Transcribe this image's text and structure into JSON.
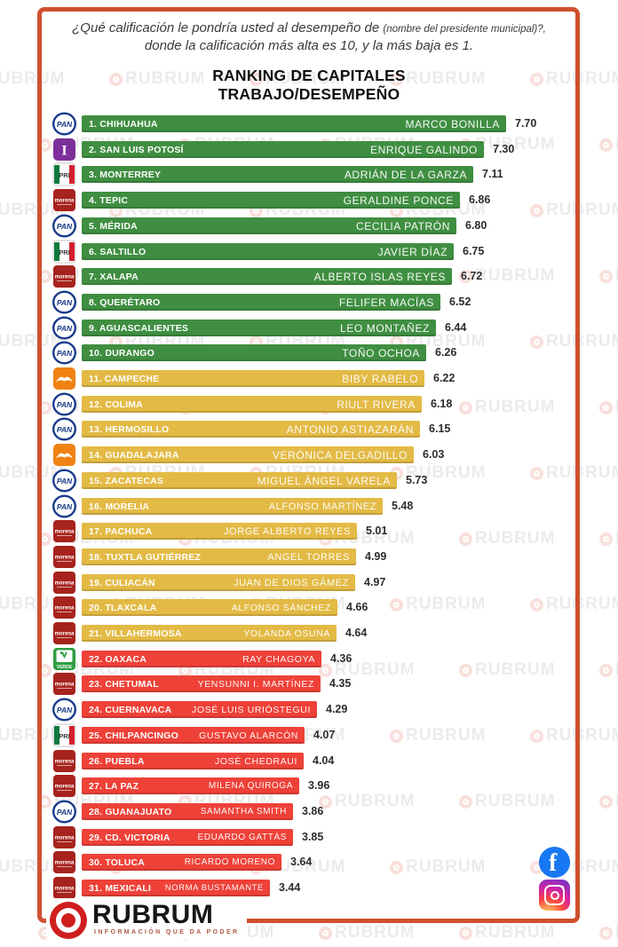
{
  "header": {
    "question_part1": "¿Qué calificación le pondría usted al desempeño de",
    "question_small": "(nombre del presidente municipal)?,",
    "question_part2": "donde la calificación más alta es 10, y la más baja es 1.",
    "title_line1": "RANKING DE CAPITALES",
    "title_line2": "TRABAJO/DESEMPEÑO"
  },
  "watermark": {
    "text": "RUBRUM",
    "icon": "rubrum-ring-icon"
  },
  "footer": {
    "brand": "RUBRUM",
    "tagline": "INFORMACIÓN QUE DA PODER",
    "brand_icon": "rubrum-target-icon",
    "social_icons": [
      "facebook-icon",
      "instagram-icon"
    ]
  },
  "colors": {
    "tier_green": "#3f8e41",
    "tier_yellow": "#e3ba45",
    "tier_red": "#ee4138",
    "frame": "#d0502f",
    "facebook_blue": "#1877f2",
    "brand_red": "#cf1e1e"
  },
  "party_logos": {
    "PAN": "pan-logo-icon",
    "I": "independent-i-logo-icon",
    "PRI": "pri-logo-icon",
    "MORENA": "morena-logo-icon",
    "MC": "movimiento-ciudadano-logo-icon",
    "VERDE": "partido-verde-logo-icon"
  },
  "chart_data": {
    "type": "bar",
    "title": "RANKING DE CAPITALES TRABAJO/DESEMPEÑO",
    "subtitle": "¿Qué calificación le pondría usted al desempeño de (nombre del presidente municipal)?, donde la calificación más alta es 10, y la más baja es 1.",
    "value_range": [
      1,
      10
    ],
    "orientation": "horizontal",
    "tiers": {
      "green": "ranks 1-10",
      "yellow": "ranks 11-21",
      "red": "ranks 22-31"
    },
    "rows": [
      {
        "rank": 1,
        "city": "1. CHIHUAHUA",
        "mayor": "MARCO BONILLA",
        "score": 7.7,
        "score_label": "7.70",
        "party": "PAN",
        "tier": "green"
      },
      {
        "rank": 2,
        "city": "2. SAN LUIS POTOSÍ",
        "mayor": "ENRIQUE GALINDO",
        "score": 7.3,
        "score_label": "7.30",
        "party": "I",
        "tier": "green"
      },
      {
        "rank": 3,
        "city": "3. MONTERREY",
        "mayor": "ADRIÁN DE LA GARZA",
        "score": 7.11,
        "score_label": "7.11",
        "party": "PRI",
        "tier": "green"
      },
      {
        "rank": 4,
        "city": "4. TEPIC",
        "mayor": "GERALDINE PONCE",
        "score": 6.86,
        "score_label": "6.86",
        "party": "MORENA",
        "tier": "green"
      },
      {
        "rank": 5,
        "city": "5. MÉRIDA",
        "mayor": "CECILIA PATRÓN",
        "score": 6.8,
        "score_label": "6.80",
        "party": "PAN",
        "tier": "green"
      },
      {
        "rank": 6,
        "city": "6. SALTILLO",
        "mayor": "JAVIER DÍAZ",
        "score": 6.75,
        "score_label": "6.75",
        "party": "PRI",
        "tier": "green"
      },
      {
        "rank": 7,
        "city": "7. XALAPA",
        "mayor": "ALBERTO ISLAS REYES",
        "score": 6.72,
        "score_label": "6.72",
        "party": "MORENA",
        "tier": "green"
      },
      {
        "rank": 8,
        "city": "8. QUERÉTARO",
        "mayor": "FELIFER MACÍAS",
        "score": 6.52,
        "score_label": "6.52",
        "party": "PAN",
        "tier": "green"
      },
      {
        "rank": 9,
        "city": "9. AGUASCALIENTES",
        "mayor": "LEO MONTAÑEZ",
        "score": 6.44,
        "score_label": "6.44",
        "party": "PAN",
        "tier": "green"
      },
      {
        "rank": 10,
        "city": "10. DURANGO",
        "mayor": "TOÑO OCHOA",
        "score": 6.26,
        "score_label": "6.26",
        "party": "PAN",
        "tier": "green"
      },
      {
        "rank": 11,
        "city": "11. CAMPECHE",
        "mayor": "BIBY RABELO",
        "score": 6.22,
        "score_label": "6.22",
        "party": "MC",
        "tier": "yellow"
      },
      {
        "rank": 12,
        "city": "12. COLIMA",
        "mayor": "RIULT RIVERA",
        "score": 6.18,
        "score_label": "6.18",
        "party": "PAN",
        "tier": "yellow"
      },
      {
        "rank": 13,
        "city": "13. HERMOSILLO",
        "mayor": "ANTONIO ASTIAZARÁN",
        "score": 6.15,
        "score_label": "6.15",
        "party": "PAN",
        "tier": "yellow"
      },
      {
        "rank": 14,
        "city": "14. GUADALAJARA",
        "mayor": "VERÓNICA DELGADILLO",
        "score": 6.03,
        "score_label": "6.03",
        "party": "MC",
        "tier": "yellow"
      },
      {
        "rank": 15,
        "city": "15. ZACATECAS",
        "mayor": "MIGUEL ÁNGEL VARELA",
        "score": 5.73,
        "score_label": "5.73",
        "party": "PAN",
        "tier": "yellow"
      },
      {
        "rank": 16,
        "city": "16. MORELIA",
        "mayor": "ALFONSO MARTÍNEZ",
        "score": 5.48,
        "score_label": "5.48",
        "party": "PAN",
        "tier": "yellow"
      },
      {
        "rank": 17,
        "city": "17. PACHUCA",
        "mayor": "JORGE ALBERTO REYES",
        "score": 5.01,
        "score_label": "5.01",
        "party": "MORENA",
        "tier": "yellow"
      },
      {
        "rank": 18,
        "city": "18. TUXTLA GUTIÉRREZ",
        "mayor": "ANGEL TORRES",
        "score": 4.99,
        "score_label": "4.99",
        "party": "MORENA",
        "tier": "yellow"
      },
      {
        "rank": 19,
        "city": "19. CULIACÁN",
        "mayor": "JUAN DE DIOS GÁMEZ",
        "score": 4.97,
        "score_label": "4.97",
        "party": "MORENA",
        "tier": "yellow"
      },
      {
        "rank": 20,
        "city": "20. TLAXCALA",
        "mayor": "ALFONSO SÁNCHEZ",
        "score": 4.66,
        "score_label": "4.66",
        "party": "MORENA",
        "tier": "yellow"
      },
      {
        "rank": 21,
        "city": "21. VILLAHERMOSA",
        "mayor": "YOLANDA OSUNA",
        "score": 4.64,
        "score_label": "4.64",
        "party": "MORENA",
        "tier": "yellow"
      },
      {
        "rank": 22,
        "city": "22. OAXACA",
        "mayor": "RAY CHAGOYA",
        "score": 4.36,
        "score_label": "4.36",
        "party": "VERDE",
        "tier": "red"
      },
      {
        "rank": 23,
        "city": "23. CHETUMAL",
        "mayor": "YENSUNNI I. MARTÍNEZ",
        "score": 4.35,
        "score_label": "4.35",
        "party": "MORENA",
        "tier": "red"
      },
      {
        "rank": 24,
        "city": "24. CUERNAVACA",
        "mayor": "JOSÉ LUIS URIÓSTEGUI",
        "score": 4.29,
        "score_label": "4.29",
        "party": "PAN",
        "tier": "red"
      },
      {
        "rank": 25,
        "city": "25. CHILPANCINGO",
        "mayor": "GUSTAVO ALARCÓN",
        "score": 4.07,
        "score_label": "4.07",
        "party": "PRI",
        "tier": "red"
      },
      {
        "rank": 26,
        "city": "26. PUEBLA",
        "mayor": "JOSÉ CHEDRAUI",
        "score": 4.04,
        "score_label": "4.04",
        "party": "MORENA",
        "tier": "red"
      },
      {
        "rank": 27,
        "city": "27. LA PAZ",
        "mayor": "MILENA QUIROGA",
        "score": 3.96,
        "score_label": "3.96",
        "party": "MORENA",
        "tier": "red"
      },
      {
        "rank": 28,
        "city": "28. GUANAJUATO",
        "mayor": "SAMANTHA SMITH",
        "score": 3.86,
        "score_label": "3.86",
        "party": "PAN",
        "tier": "red"
      },
      {
        "rank": 29,
        "city": "29. CD. VICTORIA",
        "mayor": "EDUARDO GATTÁS",
        "score": 3.85,
        "score_label": "3.85",
        "party": "MORENA",
        "tier": "red"
      },
      {
        "rank": 30,
        "city": "30. TOLUCA",
        "mayor": "RICARDO MORENO",
        "score": 3.64,
        "score_label": "3.64",
        "party": "MORENA",
        "tier": "red"
      },
      {
        "rank": 31,
        "city": "31. MEXICALI",
        "mayor": "NORMA BUSTAMANTE",
        "score": 3.44,
        "score_label": "3.44",
        "party": "MORENA",
        "tier": "red"
      }
    ]
  }
}
